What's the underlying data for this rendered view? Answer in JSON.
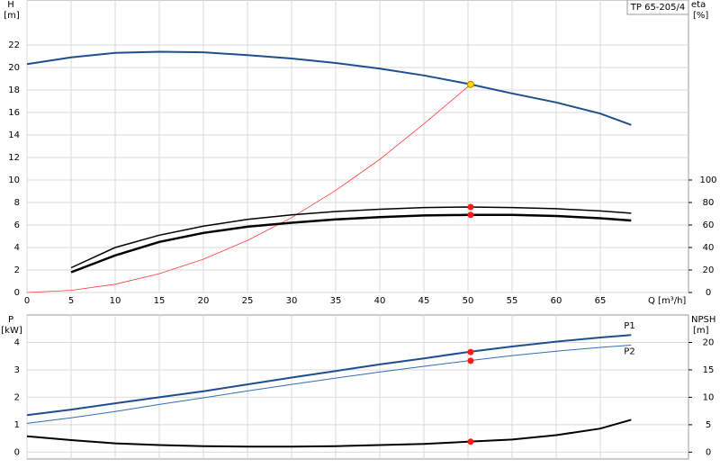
{
  "chart_data": [
    {
      "type": "line",
      "label": "TP 65-205/4",
      "ylabel": "H",
      "yunit": "[m]",
      "y2label": "eta",
      "y2unit": "[%]",
      "xlabel": "Q [m³/h]",
      "xlim": [
        0,
        75
      ],
      "xticks": [
        0,
        5,
        10,
        15,
        20,
        25,
        30,
        35,
        40,
        45,
        50,
        55,
        60,
        65
      ],
      "ylim": [
        0,
        26
      ],
      "yticks": [
        0,
        2,
        4,
        6,
        8,
        10,
        12,
        14,
        16,
        18,
        20,
        22
      ],
      "y2lim": [
        0,
        260
      ],
      "y2ticks": [
        0,
        20,
        40,
        60,
        80,
        100
      ],
      "grid": true,
      "show_xtick_labels": true,
      "series": [
        {
          "color": "#1f4e8c",
          "width": 2,
          "axis": "y",
          "x": [
            0,
            5,
            10,
            15,
            20,
            25,
            30,
            35,
            40,
            45,
            50,
            55,
            60,
            65,
            68.5
          ],
          "values": [
            20.3,
            20.9,
            21.3,
            21.4,
            21.35,
            21.1,
            20.8,
            20.4,
            19.9,
            19.3,
            18.55,
            17.7,
            16.9,
            15.9,
            14.9
          ]
        },
        {
          "color": "#ff3b3b",
          "width": 0.8,
          "axis": "y",
          "x": [
            0,
            5,
            10,
            15,
            20,
            25,
            30,
            35,
            40,
            45,
            50.3
          ],
          "values": [
            0,
            0.19,
            0.74,
            1.67,
            2.96,
            4.63,
            6.66,
            9.07,
            11.84,
            14.99,
            18.5
          ]
        },
        {
          "color": "#000000",
          "width": 1.5,
          "axis": "y2",
          "x": [
            5,
            10,
            15,
            20,
            25,
            30,
            35,
            40,
            45,
            50,
            55,
            60,
            65,
            68.5
          ],
          "values": [
            22,
            40,
            51,
            59,
            65,
            69,
            72,
            74,
            75.5,
            76,
            75.5,
            74.5,
            72.5,
            70.5
          ]
        },
        {
          "color": "#000000",
          "width": 2.5,
          "axis": "y2",
          "x": [
            5,
            10,
            15,
            20,
            25,
            30,
            35,
            40,
            45,
            50,
            55,
            60,
            65,
            68.5
          ],
          "values": [
            18,
            33,
            45,
            53,
            58.5,
            62,
            65,
            67,
            68.5,
            69,
            69,
            68,
            66,
            64
          ]
        }
      ],
      "points": [
        {
          "x": 50.3,
          "y": 18.5,
          "axis": "y",
          "color": "#ffd700"
        },
        {
          "x": 50.3,
          "y": 76,
          "axis": "y2",
          "color": "#ff1a1a"
        },
        {
          "x": 50.3,
          "y": 69,
          "axis": "y2",
          "color": "#ff1a1a"
        }
      ]
    },
    {
      "type": "line",
      "ylabel": "P",
      "yunit": "[kW]",
      "y2label": "NPSH",
      "y2unit": "[m]",
      "xlim": [
        0,
        75
      ],
      "xticks": [
        0,
        5,
        10,
        15,
        20,
        25,
        30,
        35,
        40,
        45,
        50,
        55,
        60,
        65
      ],
      "ylim": [
        -0.25,
        5
      ],
      "yticks": [
        0,
        1,
        2,
        3,
        4
      ],
      "y2lim": [
        -1.25,
        25
      ],
      "y2ticks": [
        0,
        5,
        10,
        15,
        20
      ],
      "grid": true,
      "show_xtick_labels": false,
      "series": [
        {
          "name": "P1",
          "color": "#1f4e8c",
          "width": 2,
          "axis": "y",
          "x": [
            0,
            5,
            10,
            15,
            20,
            25,
            30,
            35,
            40,
            45,
            50,
            55,
            60,
            65,
            68.5
          ],
          "values": [
            1.35,
            1.55,
            1.78,
            2.0,
            2.22,
            2.47,
            2.72,
            2.96,
            3.2,
            3.42,
            3.65,
            3.85,
            4.03,
            4.18,
            4.27
          ]
        },
        {
          "name": "P2",
          "color": "#2e6fb3",
          "width": 1,
          "axis": "y",
          "x": [
            0,
            5,
            10,
            15,
            20,
            25,
            30,
            35,
            40,
            45,
            50,
            55,
            60,
            65,
            68.5
          ],
          "values": [
            1.05,
            1.25,
            1.48,
            1.74,
            1.98,
            2.23,
            2.47,
            2.7,
            2.92,
            3.13,
            3.33,
            3.52,
            3.68,
            3.82,
            3.9
          ]
        },
        {
          "color": "#000000",
          "width": 2,
          "axis": "y2",
          "x": [
            0,
            5,
            10,
            15,
            20,
            25,
            30,
            35,
            40,
            45,
            50,
            55,
            60,
            65,
            68.5
          ],
          "values": [
            2.9,
            2.2,
            1.6,
            1.3,
            1.1,
            1.0,
            1.0,
            1.1,
            1.3,
            1.5,
            1.9,
            2.3,
            3.1,
            4.3,
            5.9
          ]
        }
      ],
      "points": [
        {
          "x": 50.3,
          "y": 3.65,
          "axis": "y",
          "color": "#ff1a1a"
        },
        {
          "x": 50.3,
          "y": 3.33,
          "axis": "y",
          "color": "#ff1a1a"
        },
        {
          "x": 50.3,
          "y": 1.9,
          "axis": "y2",
          "color": "#ff1a1a"
        }
      ]
    }
  ]
}
